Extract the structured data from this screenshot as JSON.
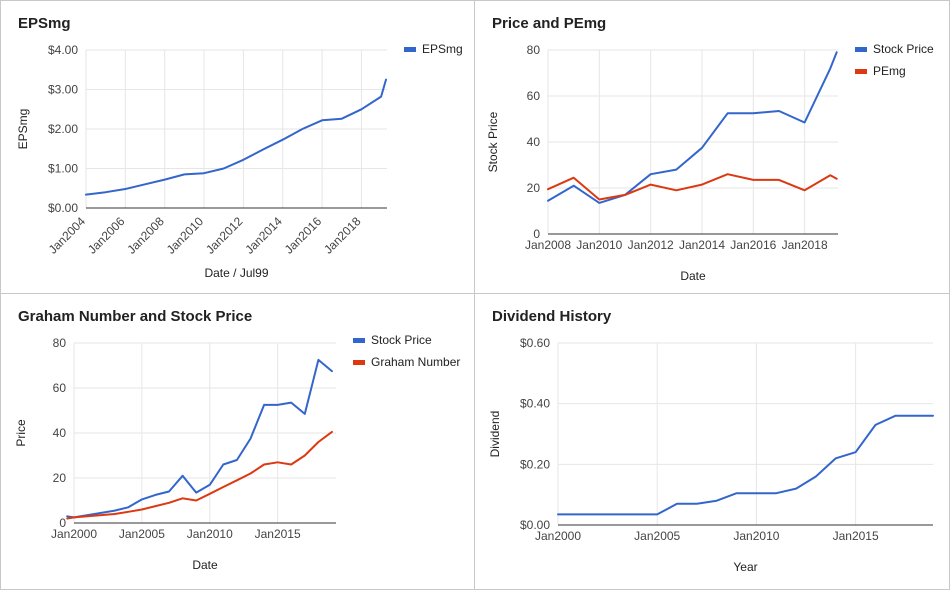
{
  "chart_data": [
    {
      "type": "line",
      "title": "EPSmg",
      "xlabel": "Date / Jul99",
      "ylabel": "EPSmg",
      "x_ticks": [
        "Jan2004",
        "Jan2006",
        "Jan2008",
        "Jan2010",
        "Jan2012",
        "Jan2014",
        "Jan2016",
        "Jan2018"
      ],
      "y_ticks": [
        "$0.00",
        "$1.00",
        "$2.00",
        "$3.00",
        "$4.00"
      ],
      "xlim": [
        2004,
        2019.3
      ],
      "ylim": [
        0,
        4
      ],
      "grid": true,
      "legend_position": "right",
      "series": [
        {
          "name": "EPSmg",
          "color": "#3366cc",
          "x": [
            2004,
            2005,
            2006,
            2007,
            2008,
            2009,
            2010,
            2011,
            2012,
            2013,
            2014,
            2015,
            2016,
            2017,
            2018,
            2019,
            2019.25
          ],
          "y": [
            0.34,
            0.4,
            0.48,
            0.6,
            0.72,
            0.85,
            0.88,
            1.0,
            1.22,
            1.48,
            1.73,
            2.0,
            2.22,
            2.26,
            2.5,
            2.82,
            3.25
          ]
        }
      ]
    },
    {
      "type": "line",
      "title": "Price and PEmg",
      "xlabel": "Date",
      "ylabel": "Stock Price",
      "x_ticks": [
        "Jan2008",
        "Jan2010",
        "Jan2012",
        "Jan2014",
        "Jan2016",
        "Jan2018"
      ],
      "y_ticks": [
        "0",
        "20",
        "40",
        "60",
        "80"
      ],
      "xlim": [
        2008,
        2019.3
      ],
      "ylim": [
        0,
        80
      ],
      "grid": true,
      "legend_position": "right",
      "series": [
        {
          "name": "Stock Price",
          "color": "#3366cc",
          "x": [
            2008,
            2009,
            2010,
            2011,
            2012,
            2013,
            2014,
            2015,
            2016,
            2017,
            2018,
            2019,
            2019.25
          ],
          "y": [
            14.5,
            21,
            13.5,
            17,
            26,
            28,
            37.5,
            52.5,
            52.5,
            53.5,
            48.5,
            72,
            79
          ]
        },
        {
          "name": "PEmg",
          "color": "#dc3912",
          "x": [
            2008,
            2009,
            2010,
            2011,
            2012,
            2013,
            2014,
            2015,
            2016,
            2017,
            2018,
            2019,
            2019.25
          ],
          "y": [
            19.5,
            24.5,
            15,
            17,
            21.5,
            19,
            21.5,
            26,
            23.5,
            23.5,
            19,
            25.5,
            24
          ]
        }
      ]
    },
    {
      "type": "line",
      "title": "Graham Number and Stock Price",
      "xlabel": "Date",
      "ylabel": "Price",
      "x_ticks": [
        "Jan2000",
        "Jan2005",
        "Jan2010",
        "Jan2015"
      ],
      "y_ticks": [
        "0",
        "20",
        "40",
        "60",
        "80"
      ],
      "xlim": [
        2000,
        2019.3
      ],
      "ylim": [
        0,
        80
      ],
      "grid": true,
      "legend_position": "right",
      "series": [
        {
          "name": "Stock Price",
          "color": "#3366cc",
          "x": [
            1999.5,
            2000,
            2001,
            2002,
            2003,
            2004,
            2005,
            2006,
            2007,
            2008,
            2009,
            2010,
            2011,
            2012,
            2013,
            2014,
            2015,
            2016,
            2017,
            2018,
            2019
          ],
          "y": [
            3,
            2.5,
            3.5,
            4.5,
            5.5,
            7,
            10.5,
            12.5,
            14,
            21,
            13.5,
            17,
            26,
            28,
            37.5,
            52.5,
            52.5,
            53.5,
            48.5,
            72.5,
            67.5
          ]
        },
        {
          "name": "Graham Number",
          "color": "#dc3912",
          "x": [
            1999.5,
            2000,
            2001,
            2002,
            2003,
            2004,
            2005,
            2006,
            2007,
            2008,
            2009,
            2010,
            2011,
            2012,
            2013,
            2014,
            2015,
            2016,
            2017,
            2018,
            2019
          ],
          "y": [
            2,
            2.5,
            3,
            3.5,
            4,
            5,
            6,
            7.5,
            9,
            11,
            10,
            13,
            16,
            19,
            22,
            26,
            27,
            26,
            30,
            36,
            40.5
          ]
        }
      ]
    },
    {
      "type": "line",
      "title": "Dividend History",
      "xlabel": "Year",
      "ylabel": "Dividend",
      "x_ticks": [
        "Jan2000",
        "Jan2005",
        "Jan2010",
        "Jan2015"
      ],
      "y_ticks": [
        "$0.00",
        "$0.20",
        "$0.40",
        "$0.60"
      ],
      "xlim": [
        2000,
        2018.9
      ],
      "ylim": [
        0,
        0.6
      ],
      "grid": true,
      "series": [
        {
          "color": "#3366cc",
          "x": [
            2000,
            2001,
            2002,
            2003,
            2004,
            2005,
            2006,
            2007,
            2008,
            2009,
            2010,
            2011,
            2012,
            2013,
            2014,
            2015,
            2016,
            2017,
            2018,
            2018.9
          ],
          "y": [
            0.035,
            0.035,
            0.035,
            0.035,
            0.035,
            0.035,
            0.07,
            0.07,
            0.08,
            0.105,
            0.105,
            0.105,
            0.12,
            0.16,
            0.22,
            0.24,
            0.33,
            0.36,
            0.36,
            0.36
          ]
        }
      ]
    }
  ]
}
